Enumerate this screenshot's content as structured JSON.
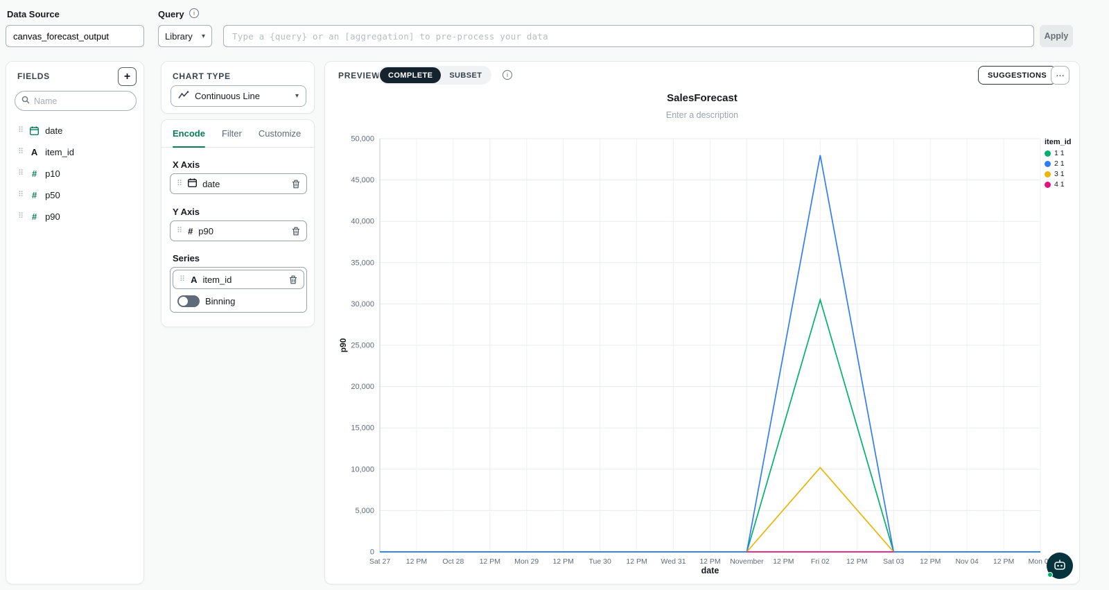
{
  "topbar": {
    "data_source_label": "Data Source",
    "data_source_value": "canvas_forecast_output",
    "query_label": "Query",
    "library_value": "Library",
    "query_placeholder": "Type a {query} or an [aggregation] to pre-process your data",
    "apply_label": "Apply"
  },
  "fields_panel": {
    "title": "FIELDS",
    "search_placeholder": "Name",
    "fields": [
      {
        "name": "date",
        "type": "date"
      },
      {
        "name": "item_id",
        "type": "text"
      },
      {
        "name": "p10",
        "type": "number"
      },
      {
        "name": "p50",
        "type": "number"
      },
      {
        "name": "p90",
        "type": "number"
      }
    ]
  },
  "chart_type_panel": {
    "title": "CHART TYPE",
    "value": "Continuous Line"
  },
  "encode_panel": {
    "tabs": [
      "Encode",
      "Filter",
      "Customize"
    ],
    "active_tab": "Encode",
    "x_axis": {
      "label": "X Axis",
      "field": "date"
    },
    "y_axis": {
      "label": "Y Axis",
      "field": "p90"
    },
    "series": {
      "label": "Series",
      "field": "item_id",
      "binning_label": "Binning",
      "binning_on": false
    }
  },
  "preview_bar": {
    "preview_label": "PREVIEW",
    "modes": [
      "COMPLETE",
      "SUBSET"
    ],
    "active_mode": "COMPLETE",
    "suggestions_label": "SUGGESTIONS",
    "more_label": "..."
  },
  "chart_data": {
    "type": "line",
    "title": "SalesForecast",
    "subtitle": "Enter a description",
    "xlabel": "date",
    "ylabel": "p90",
    "ylim": [
      0,
      50000
    ],
    "ytick_step": 5000,
    "grid": true,
    "legend_title": "item_id",
    "legend_position": "right",
    "x_ticks": [
      "Sat 27",
      "12 PM",
      "Oct 28",
      "12 PM",
      "Mon 29",
      "12 PM",
      "Tue 30",
      "12 PM",
      "Wed 31",
      "12 PM",
      "November",
      "12 PM",
      "Fri 02",
      "12 PM",
      "Sat 03",
      "12 PM",
      "Nov 04",
      "12 PM",
      "Mon 05"
    ],
    "series": [
      {
        "name": "1 1",
        "color": "#00b16b",
        "values": [
          0,
          0,
          0,
          0,
          0,
          0,
          0,
          0,
          0,
          0,
          0,
          15250,
          30500,
          15250,
          0,
          0,
          0,
          0,
          0
        ]
      },
      {
        "name": "2 1",
        "color": "#2e7df7",
        "values": [
          0,
          0,
          0,
          0,
          0,
          0,
          0,
          0,
          0,
          0,
          0,
          24000,
          48000,
          24000,
          0,
          0,
          0,
          0,
          0
        ]
      },
      {
        "name": "3 1",
        "color": "#eeb307",
        "values": [
          null,
          null,
          null,
          null,
          null,
          null,
          null,
          null,
          null,
          null,
          0,
          5100,
          10200,
          5100,
          0,
          null,
          null,
          null,
          null
        ]
      },
      {
        "name": "4 1",
        "color": "#e5117d",
        "values": [
          null,
          null,
          null,
          null,
          null,
          null,
          null,
          null,
          null,
          null,
          0,
          0,
          0,
          0,
          0,
          null,
          null,
          null,
          null
        ]
      }
    ]
  }
}
